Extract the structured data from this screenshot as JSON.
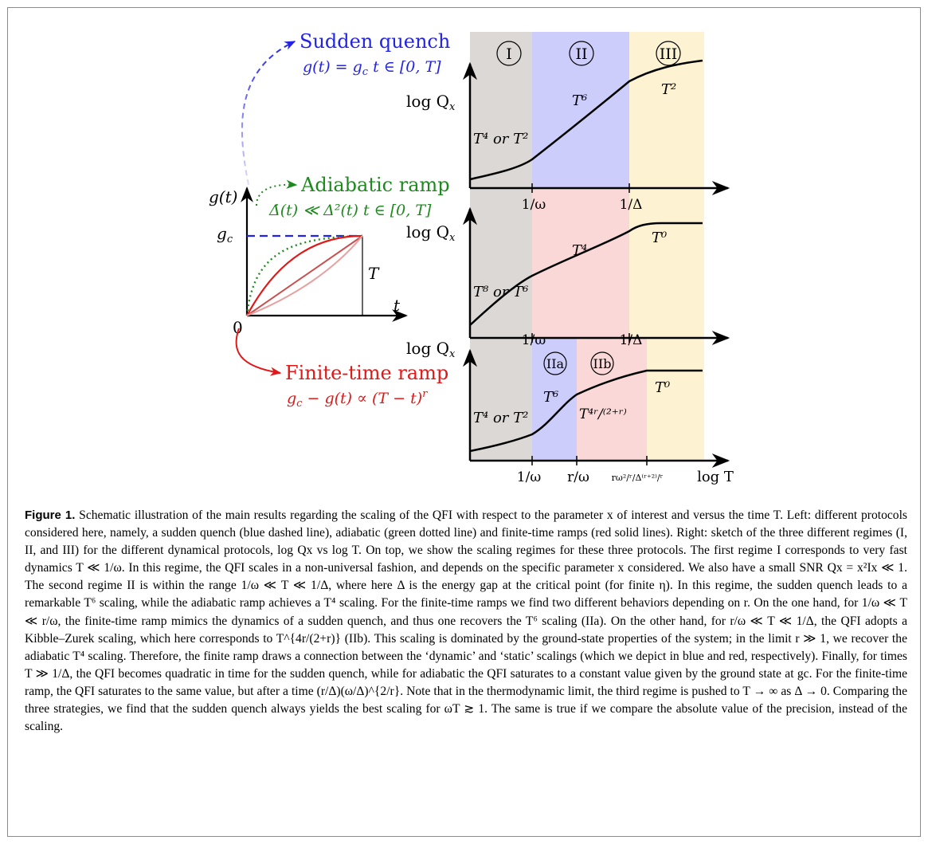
{
  "left": {
    "sudden": {
      "title": "Sudden quench",
      "eq": "g(t) = g",
      "eq_sub": "c",
      "eq_rest": "  t ∈ [0, T]"
    },
    "adiabatic": {
      "title": "Adiabatic ramp",
      "eq": "Δ̇(t) ≪ Δ²(t)  t ∈ [0, T]"
    },
    "finite": {
      "title": "Finite-time ramp",
      "eq": "g",
      "eq_sub": "c",
      "eq_rest": " − g(t) ∝ (T − t)",
      "eq_sup": "r"
    },
    "axes": {
      "y": "g(t)",
      "ytick": "g",
      "ytick_sub": "c",
      "x": "t",
      "origin": "0",
      "T": "T"
    }
  },
  "colors": {
    "blue": "#2323e6",
    "green": "#1e8a1e",
    "red": "#e01818",
    "grey_band": "#dcd8d5",
    "blue_band": "#cdcdfb",
    "red_band": "#fad8d8",
    "yellow_band": "#fdf3d2"
  },
  "panels": [
    {
      "ylabel": "log Q",
      "ylabel_sub": "x",
      "ticks": [
        "1/ω",
        "1/Δ"
      ],
      "roman": [
        "I",
        "II",
        "III"
      ],
      "labels": {
        "early": "T⁴ or T²",
        "mid": "T⁶",
        "late": "T²"
      }
    },
    {
      "ylabel": "log Q",
      "ylabel_sub": "x",
      "ticks": [
        "1/ω",
        "1/Δ"
      ],
      "labels": {
        "early": "T⁸ or T⁶",
        "mid": "T⁴",
        "late": "T⁰"
      }
    },
    {
      "ylabel": "log Q",
      "ylabel_sub": "x",
      "ticks": [
        "1/ω",
        "r/ω",
        "rω²/ʳ/Δ⁽ʳ⁺²⁾/ʳ"
      ],
      "xlabel": "log T",
      "roman": [
        "IIa",
        "IIb"
      ],
      "labels": {
        "early": "T⁴ or T²",
        "mid": "T⁶",
        "midb": "T⁴ʳ/⁽²⁺ʳ⁾",
        "late": "T⁰"
      }
    }
  ],
  "caption": {
    "label": "Figure 1.",
    "text": "Schematic illustration of the main results regarding the scaling of the QFI with respect to the parameter x of interest and versus the time T. Left: different protocols considered here, namely, a sudden quench (blue dashed line), adiabatic (green dotted line) and finite-time ramps (red solid lines). Right: sketch of the three different regimes (I, II, and III) for the different dynamical protocols, log Qx vs log T. On top, we show the scaling regimes for these three protocols. The first regime I corresponds to very fast dynamics T ≪ 1/ω. In this regime, the QFI scales in a non-universal fashion, and depends on the specific parameter x considered. We also have a small SNR Qx = x²Ix ≪ 1. The second regime II is within the range 1/ω ≪ T ≪ 1/Δ, where here Δ is the energy gap at the critical point (for finite η). In this regime, the sudden quench leads to a remarkable T⁶ scaling, while the adiabatic ramp achieves a T⁴ scaling. For the finite-time ramps we find two different behaviors depending on r. On the one hand, for 1/ω ≪ T ≪ r/ω, the finite-time ramp mimics the dynamics of a sudden quench, and thus one recovers the T⁶ scaling (IIa). On the other hand, for r/ω ≪ T ≪ 1/Δ, the QFI adopts a Kibble–Zurek scaling, which here corresponds to T^{4r/(2+r)} (IIb). This scaling is dominated by the ground-state properties of the system; in the limit r ≫ 1, we recover the adiabatic T⁴ scaling. Therefore, the finite ramp draws a connection between the ‘dynamic’ and ‘static’ scalings (which we depict in blue and red, respectively). Finally, for times T ≫ 1/Δ, the QFI becomes quadratic in time for the sudden quench, while for adiabatic the QFI saturates to a constant value given by the ground state at gc. For the finite-time ramp, the QFI saturates to the same value, but after a time (r/Δ)(ω/Δ)^{2/r}. Note that in the thermodynamic limit, the third regime is pushed to T → ∞ as Δ → 0. Comparing the three strategies, we find that the sudden quench always yields the best scaling for ωT ≳ 1. The same is true if we compare the absolute value of the precision, instead of the scaling."
  }
}
